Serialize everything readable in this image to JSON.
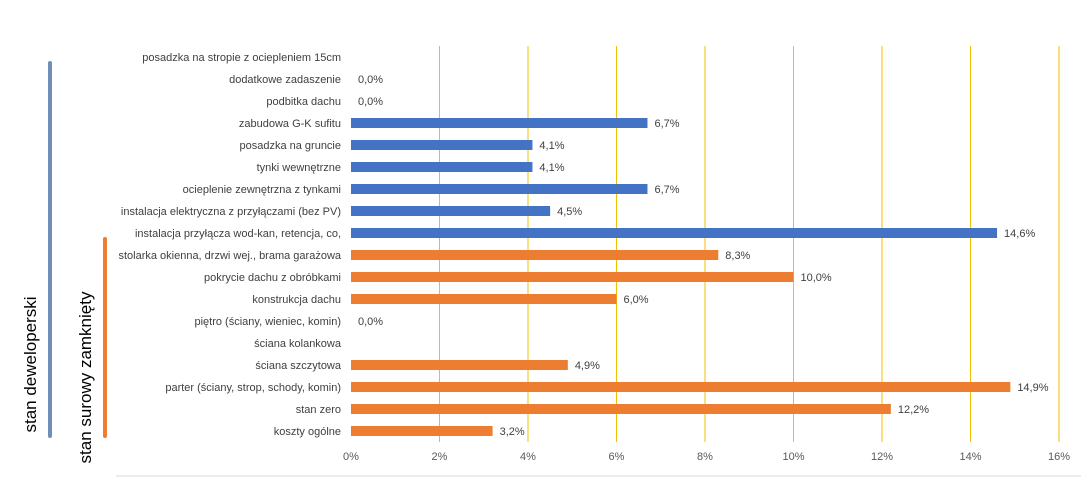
{
  "chart_data": {
    "type": "bar",
    "orientation": "horizontal",
    "categories": [
      "posadzka na stropie z ociepleniem 15cm",
      "dodatkowe zadaszenie",
      "podbitka dachu",
      "zabudowa G-K sufitu",
      "posadzka na gruncie",
      "tynki wewnętrzne",
      "ocieplenie zewnętrzna z tynkami",
      "instalacja elektryczna z przyłączami (bez PV)",
      "instalacja przyłącza wod-kan, retencja, co,",
      "stolarka okienna, drzwi wej., brama garażowa",
      "pokrycie dachu z obróbkami",
      "konstrukcja dachu",
      "piętro (ściany, wieniec, komin)",
      "ściana kolankowa",
      "ściana szczytowa",
      "parter (ściany, strop, schody, komin)",
      "stan zero",
      "koszty ogólne"
    ],
    "values": [
      null,
      0.0,
      0.0,
      6.7,
      4.1,
      4.1,
      6.7,
      4.5,
      14.6,
      8.3,
      10.0,
      6.0,
      0.0,
      null,
      4.9,
      14.9,
      12.2,
      3.2
    ],
    "value_labels": [
      "",
      "0,0%",
      "0,0%",
      "6,7%",
      "4,1%",
      "4,1%",
      "6,7%",
      "4,5%",
      "14,6%",
      "8,3%",
      "10,0%",
      "6,0%",
      "0,0%",
      "",
      "4,9%",
      "14,9%",
      "12,2%",
      "3,2%"
    ],
    "groups": [
      {
        "name": "stan deweloperski",
        "from": 1,
        "to": 17,
        "color": "#6f8fb8"
      },
      {
        "name": "stan surowy zamknięty",
        "from": 9,
        "to": 17,
        "color": "#ed7d31"
      }
    ],
    "bar_colors": {
      "blue": "#4472c4",
      "orange": "#ed7d31"
    },
    "bar_color_by_index": [
      "blue",
      "blue",
      "blue",
      "blue",
      "blue",
      "blue",
      "blue",
      "blue",
      "blue",
      "orange",
      "orange",
      "orange",
      "orange",
      "orange",
      "orange",
      "orange",
      "orange",
      "orange"
    ],
    "xlim": [
      0,
      16
    ],
    "xticks": [
      0,
      2,
      4,
      6,
      8,
      10,
      12,
      14,
      16
    ],
    "xtick_labels": [
      "0%",
      "2%",
      "4%",
      "6%",
      "8%",
      "10%",
      "12%",
      "14%",
      "16%"
    ],
    "grid_color": "#f2c200",
    "grid": true,
    "title": "",
    "xlabel": "",
    "ylabel": ""
  }
}
